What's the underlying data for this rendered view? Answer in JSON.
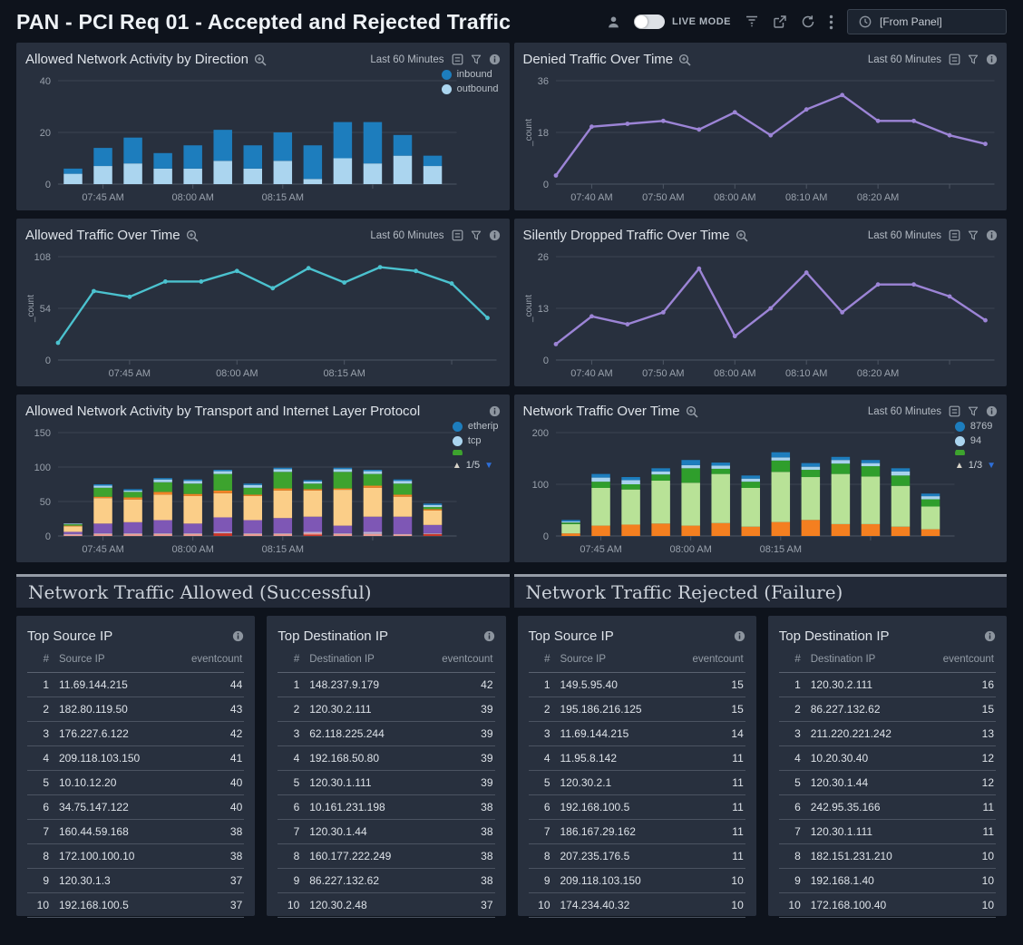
{
  "header": {
    "title": "PAN - PCI Req 01 - Accepted and Rejected Traffic",
    "live_mode_label": "LIVE MODE",
    "time_input_value": "[From Panel]",
    "icons": [
      "user-icon",
      "live-mode-toggle",
      "filter-icon",
      "share-icon",
      "refresh-icon",
      "kebab-menu-icon",
      "clock-icon"
    ]
  },
  "panels": {
    "direction": {
      "title": "Allowed Network Activity by Direction",
      "time_label": "Last 60 Minutes",
      "icons": [
        "magnifier-icon",
        "copy-panel-icon",
        "filter-icon",
        "info-icon"
      ]
    },
    "denied": {
      "title": "Denied Traffic Over Time",
      "time_label": "Last 60 Minutes",
      "icons": [
        "magnifier-icon",
        "copy-panel-icon",
        "filter-icon",
        "info-icon"
      ]
    },
    "allowed": {
      "title": "Allowed Traffic Over Time",
      "time_label": "Last 60 Minutes",
      "icons": [
        "magnifier-icon",
        "copy-panel-icon",
        "filter-icon",
        "info-icon"
      ]
    },
    "dropped": {
      "title": "Silently Dropped Traffic Over Time",
      "time_label": "Last 60 Minutes",
      "icons": [
        "magnifier-icon",
        "copy-panel-icon",
        "filter-icon",
        "info-icon"
      ]
    },
    "protocol": {
      "title": "Allowed Network Activity by Transport and Internet Layer Protocol",
      "icons": [
        "info-icon"
      ]
    },
    "network": {
      "title": "Network Traffic Over Time",
      "time_label": "Last 60 Minutes",
      "icons": [
        "magnifier-icon",
        "copy-panel-icon",
        "filter-icon",
        "info-icon"
      ]
    }
  },
  "charts": {
    "direction": {
      "type": "bar",
      "ylabel": "",
      "yticks": [
        0,
        20,
        40
      ],
      "x_ticks": [
        {
          "i": 1,
          "label": "07:45 AM"
        },
        {
          "i": 4,
          "label": "08:00 AM"
        },
        {
          "i": 7,
          "label": "08:15 AM"
        },
        {
          "i": 10,
          "label": ""
        }
      ],
      "series": [
        {
          "name": "outbound",
          "color": "#abd5ef",
          "values": [
            4,
            7,
            8,
            6,
            6,
            9,
            6,
            9,
            2,
            10,
            8,
            11,
            7
          ]
        },
        {
          "name": "inbound",
          "color": "#1d7dbd",
          "values": [
            2,
            7,
            10,
            6,
            9,
            12,
            9,
            11,
            13,
            14,
            16,
            8,
            4
          ]
        }
      ],
      "legend": {
        "items": [
          {
            "label": "inbound",
            "color": "#1d7dbd"
          },
          {
            "label": "outbound",
            "color": "#abd5ef"
          }
        ]
      }
    },
    "denied": {
      "type": "line",
      "ylabel": "_count",
      "yticks": [
        0,
        18,
        36
      ],
      "x_ticks": [
        {
          "i": 1,
          "label": "07:40 AM"
        },
        {
          "i": 3,
          "label": "07:50 AM"
        },
        {
          "i": 5,
          "label": "08:00 AM"
        },
        {
          "i": 7,
          "label": "08:10 AM"
        },
        {
          "i": 9,
          "label": "08:20 AM"
        },
        {
          "i": 11,
          "label": ""
        }
      ],
      "series": [
        {
          "name": "_count",
          "color": "#9c84d6",
          "values": [
            3,
            20,
            21,
            22,
            19,
            25,
            17,
            26,
            31,
            22,
            22,
            17,
            14
          ]
        }
      ]
    },
    "allowed": {
      "type": "line",
      "ylabel": "_count",
      "yticks": [
        0,
        54,
        108
      ],
      "x_ticks": [
        {
          "i": 2,
          "label": "07:45 AM"
        },
        {
          "i": 5,
          "label": "08:00 AM"
        },
        {
          "i": 8,
          "label": "08:15 AM"
        },
        {
          "i": 11,
          "label": ""
        }
      ],
      "series": [
        {
          "name": "_count",
          "color": "#4bc2cf",
          "values": [
            18,
            72,
            66,
            82,
            82,
            93,
            75,
            96,
            81,
            97,
            93,
            80,
            44
          ]
        }
      ]
    },
    "dropped": {
      "type": "line",
      "ylabel": "_count",
      "yticks": [
        0,
        13,
        26
      ],
      "x_ticks": [
        {
          "i": 1,
          "label": "07:40 AM"
        },
        {
          "i": 3,
          "label": "07:50 AM"
        },
        {
          "i": 5,
          "label": "08:00 AM"
        },
        {
          "i": 7,
          "label": "08:10 AM"
        },
        {
          "i": 9,
          "label": "08:20 AM"
        },
        {
          "i": 11,
          "label": ""
        }
      ],
      "series": [
        {
          "name": "_count",
          "color": "#9c84d6",
          "values": [
            4,
            11,
            9,
            12,
            23,
            6,
            13,
            22,
            12,
            19,
            19,
            16,
            10
          ]
        }
      ]
    },
    "protocol": {
      "type": "bar",
      "ylabel": "",
      "yticks": [
        0,
        50,
        100,
        150
      ],
      "x_ticks": [
        {
          "i": 1,
          "label": "07:45 AM"
        },
        {
          "i": 4,
          "label": "08:00 AM"
        },
        {
          "i": 7,
          "label": "08:15 AM"
        },
        {
          "i": 10,
          "label": ""
        }
      ],
      "series": [
        {
          "color": "#c8392b",
          "values": [
            0,
            0,
            0,
            0,
            0,
            4,
            0,
            0,
            2,
            0,
            0,
            0,
            3
          ]
        },
        {
          "color": "#ec9b94",
          "values": [
            2,
            3,
            3,
            3,
            3,
            0,
            3,
            3,
            2,
            3,
            3,
            2,
            0
          ]
        },
        {
          "color": "#c0b3d6",
          "values": [
            1,
            1,
            1,
            1,
            1,
            2,
            1,
            1,
            2,
            1,
            3,
            1,
            1
          ]
        },
        {
          "color": "#7e57b5",
          "values": [
            3,
            14,
            16,
            19,
            14,
            21,
            19,
            22,
            22,
            11,
            22,
            25,
            12
          ]
        },
        {
          "color": "#fbce88",
          "values": [
            8,
            37,
            33,
            37,
            40,
            35,
            35,
            40,
            38,
            52,
            42,
            29,
            21
          ]
        },
        {
          "color": "#f18426",
          "values": [
            1,
            2,
            3,
            4,
            3,
            4,
            2,
            3,
            2,
            2,
            3,
            3,
            2
          ]
        },
        {
          "color": "#3da32e",
          "values": [
            2,
            13,
            8,
            14,
            15,
            24,
            10,
            24,
            8,
            24,
            17,
            16,
            3
          ]
        },
        {
          "color": "#a8d2ed",
          "values": [
            1,
            3,
            2,
            4,
            4,
            4,
            4,
            4,
            3,
            4,
            4,
            4,
            3
          ]
        },
        {
          "color": "#1d7dbd",
          "values": [
            0,
            2,
            2,
            2,
            2,
            2,
            2,
            2,
            2,
            2,
            2,
            2,
            2
          ]
        }
      ],
      "legend": {
        "items": [
          {
            "label": "etherip",
            "color": "#1d7dbd"
          },
          {
            "label": "tcp",
            "color": "#abd5ef"
          },
          {
            "label": "",
            "color": "#3da32e",
            "truncated": true
          }
        ],
        "pager": "1/5"
      }
    },
    "network": {
      "type": "bar",
      "ylabel": "",
      "yticks": [
        0,
        100,
        200
      ],
      "x_ticks": [
        {
          "i": 1,
          "label": "07:45 AM"
        },
        {
          "i": 4,
          "label": "08:00 AM"
        },
        {
          "i": 7,
          "label": "08:15 AM"
        },
        {
          "i": 10,
          "label": ""
        }
      ],
      "series": [
        {
          "color": "#f47f20",
          "values": [
            5,
            20,
            22,
            24,
            20,
            25,
            18,
            27,
            31,
            23,
            23,
            18,
            13
          ]
        },
        {
          "color": "#b8e297",
          "values": [
            18,
            73,
            68,
            83,
            83,
            95,
            75,
            97,
            83,
            97,
            92,
            79,
            44
          ]
        },
        {
          "color": "#2f9e2c",
          "values": [
            3,
            12,
            10,
            12,
            28,
            10,
            12,
            22,
            14,
            20,
            20,
            20,
            14
          ]
        },
        {
          "color": "#a8d2ed",
          "values": [
            2,
            8,
            8,
            6,
            6,
            6,
            6,
            6,
            6,
            7,
            6,
            8,
            6
          ]
        },
        {
          "color": "#1d7dbd",
          "values": [
            3,
            7,
            6,
            6,
            10,
            6,
            6,
            10,
            7,
            6,
            6,
            6,
            5
          ]
        }
      ],
      "legend": {
        "items": [
          {
            "label": "8769",
            "color": "#1d7dbd"
          },
          {
            "label": "94",
            "color": "#abd5ef"
          },
          {
            "label": "",
            "color": "#3da32e",
            "truncated": true
          }
        ],
        "pager": "1/3"
      }
    }
  },
  "sections": {
    "allowed": "Network Traffic Allowed (Successful)",
    "rejected": "Network Traffic Rejected (Failure)"
  },
  "tables": {
    "allowed_source": {
      "title": "Top Source IP",
      "columns": [
        "#",
        "Source IP",
        "eventcount"
      ],
      "rows": [
        [
          "1",
          "11.69.144.215",
          "44"
        ],
        [
          "2",
          "182.80.119.50",
          "43"
        ],
        [
          "3",
          "176.227.6.122",
          "42"
        ],
        [
          "4",
          "209.118.103.150",
          "41"
        ],
        [
          "5",
          "10.10.12.20",
          "40"
        ],
        [
          "6",
          "34.75.147.122",
          "40"
        ],
        [
          "7",
          "160.44.59.168",
          "38"
        ],
        [
          "8",
          "172.100.100.10",
          "38"
        ],
        [
          "9",
          "120.30.1.3",
          "37"
        ],
        [
          "10",
          "192.168.100.5",
          "37"
        ]
      ]
    },
    "allowed_dest": {
      "title": "Top Destination IP",
      "columns": [
        "#",
        "Destination IP",
        "eventcount"
      ],
      "rows": [
        [
          "1",
          "148.237.9.179",
          "42"
        ],
        [
          "2",
          "120.30.2.111",
          "39"
        ],
        [
          "3",
          "62.118.225.244",
          "39"
        ],
        [
          "4",
          "192.168.50.80",
          "39"
        ],
        [
          "5",
          "120.30.1.111",
          "39"
        ],
        [
          "6",
          "10.161.231.198",
          "38"
        ],
        [
          "7",
          "120.30.1.44",
          "38"
        ],
        [
          "8",
          "160.177.222.249",
          "38"
        ],
        [
          "9",
          "86.227.132.62",
          "38"
        ],
        [
          "10",
          "120.30.2.48",
          "37"
        ]
      ]
    },
    "rejected_source": {
      "title": "Top Source IP",
      "columns": [
        "#",
        "Source IP",
        "eventcount"
      ],
      "rows": [
        [
          "1",
          "149.5.95.40",
          "15"
        ],
        [
          "2",
          "195.186.216.125",
          "15"
        ],
        [
          "3",
          "11.69.144.215",
          "14"
        ],
        [
          "4",
          "11.95.8.142",
          "11"
        ],
        [
          "5",
          "120.30.2.1",
          "11"
        ],
        [
          "6",
          "192.168.100.5",
          "11"
        ],
        [
          "7",
          "186.167.29.162",
          "11"
        ],
        [
          "8",
          "207.235.176.5",
          "11"
        ],
        [
          "9",
          "209.118.103.150",
          "10"
        ],
        [
          "10",
          "174.234.40.32",
          "10"
        ]
      ]
    },
    "rejected_dest": {
      "title": "Top Destination IP",
      "columns": [
        "#",
        "Destination IP",
        "eventcount"
      ],
      "rows": [
        [
          "1",
          "120.30.2.111",
          "16"
        ],
        [
          "2",
          "86.227.132.62",
          "15"
        ],
        [
          "3",
          "211.220.221.242",
          "13"
        ],
        [
          "4",
          "10.20.30.40",
          "12"
        ],
        [
          "5",
          "120.30.1.44",
          "12"
        ],
        [
          "6",
          "242.95.35.166",
          "11"
        ],
        [
          "7",
          "120.30.1.111",
          "11"
        ],
        [
          "8",
          "182.151.231.210",
          "10"
        ],
        [
          "9",
          "192.168.1.40",
          "10"
        ],
        [
          "10",
          "172.168.100.40",
          "10"
        ]
      ]
    }
  }
}
